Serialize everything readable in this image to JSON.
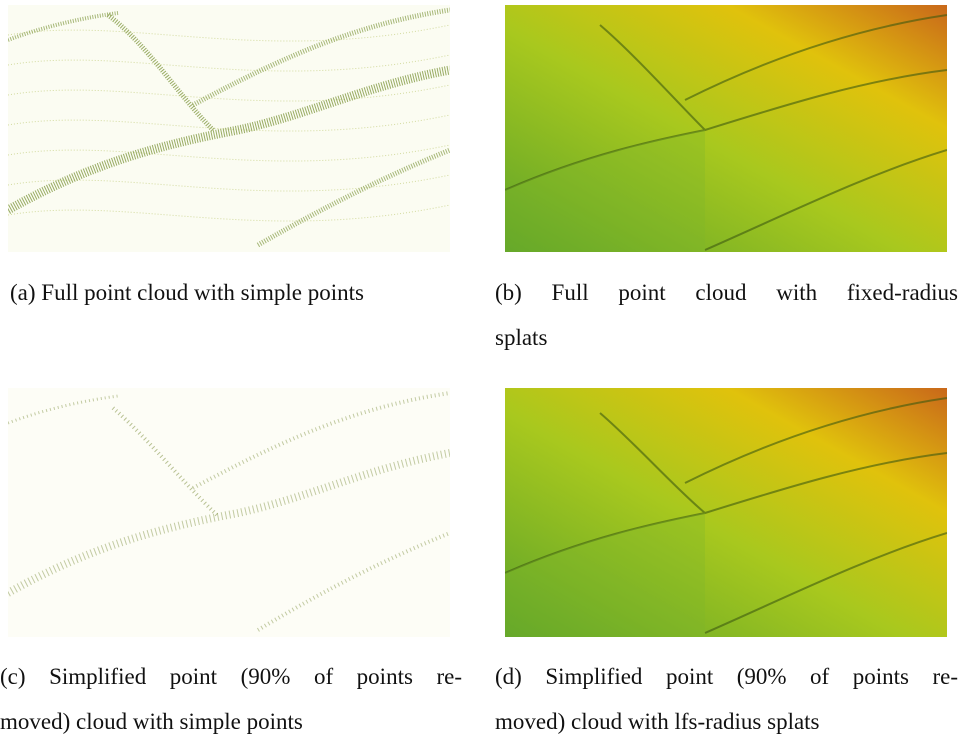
{
  "figure": {
    "panels": [
      {
        "caption_lines": [
          "(a) Full point cloud with simple points"
        ]
      },
      {
        "caption_lines": [
          "(b) Full point cloud with fixed-radius",
          "splats"
        ]
      },
      {
        "caption_lines": [
          "(c) Simplified point (90% of points re-",
          "moved) cloud with simple points"
        ]
      },
      {
        "caption_lines": [
          "(d) Simplified point (90% of points re-",
          "moved) cloud with lfs-radius splats"
        ]
      }
    ]
  }
}
